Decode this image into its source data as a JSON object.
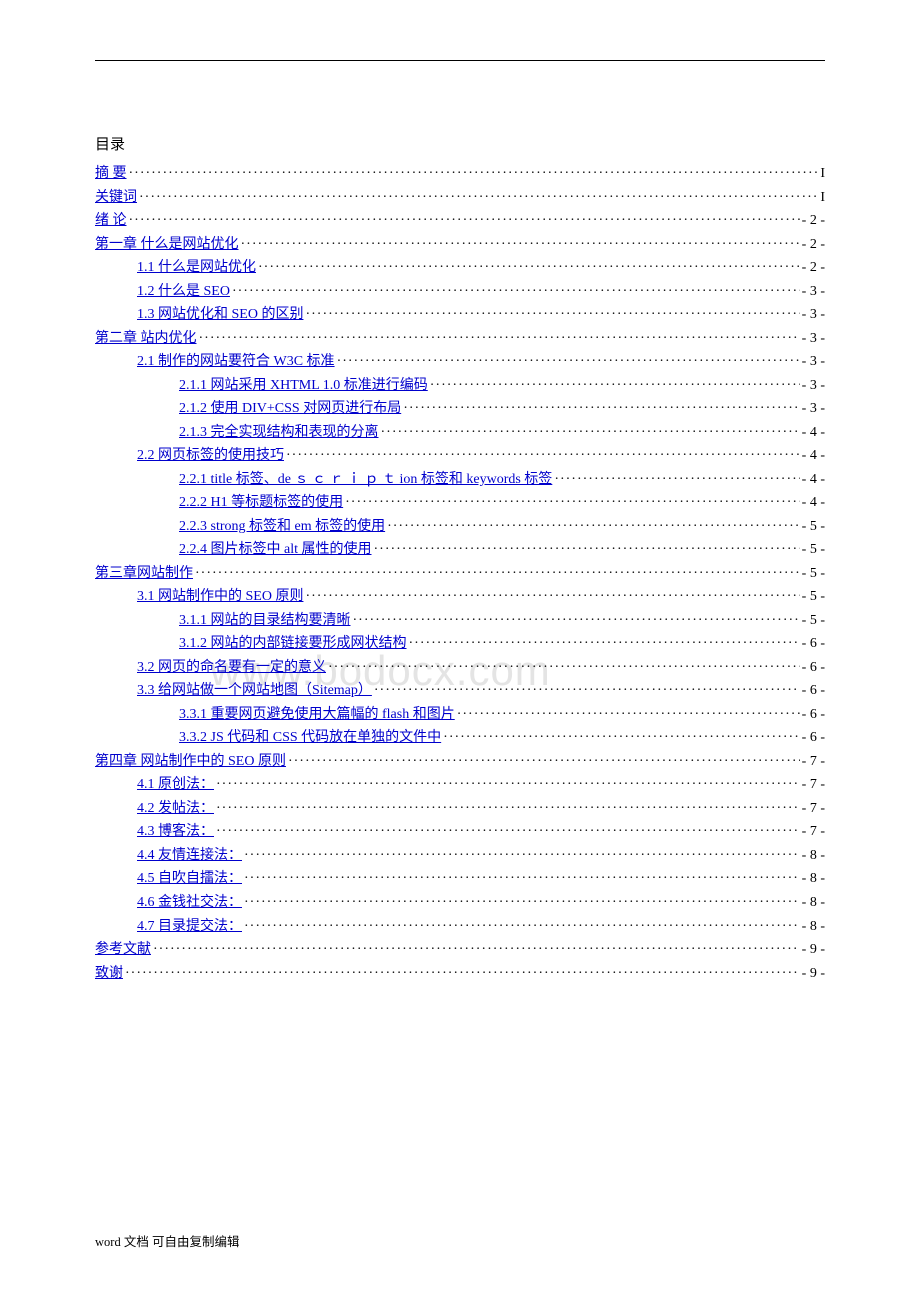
{
  "title": "目录",
  "watermark": "www.bodocx.com",
  "footer": "word 文档  可自由复制编辑",
  "link_color": "#0000cc",
  "text_color": "#000000",
  "leader_color": "#000000",
  "watermark_color": "#e4e4e4",
  "font_family": "SimSun",
  "entries": [
    {
      "label": "摘    要",
      "page": "I",
      "indent": 0
    },
    {
      "label": "关键词",
      "page": "I",
      "indent": 0
    },
    {
      "label": "绪 论",
      "page": "- 2 -",
      "indent": 0
    },
    {
      "label": "第一章  什么是网站优化",
      "page": "- 2 -",
      "indent": 0
    },
    {
      "label": "1.1 什么是网站优化",
      "page": "- 2 -",
      "indent": 1
    },
    {
      "label": "1.2 什么是 SEO",
      "page": "- 3 -",
      "indent": 1
    },
    {
      "label": "1.3    网站优化和 SEO 的区别",
      "page": "- 3 -",
      "indent": 1
    },
    {
      "label": "第二章  站内优化",
      "page": "- 3 -",
      "indent": 0
    },
    {
      "label": "2.1 制作的网站要符合 W3C 标准",
      "page": "- 3 -",
      "indent": 1
    },
    {
      "label": "2.1.1    网站采用  XHTML 1.0  标准进行编码",
      "page": "- 3 -",
      "indent": 2
    },
    {
      "label": "2.1.2    使用 DIV+CSS 对网页进行布局",
      "page": "- 3 -",
      "indent": 2
    },
    {
      "label": "2.1.3    完全实现结构和表现的分离",
      "page": "- 4 -",
      "indent": 2
    },
    {
      "label": "2.2  网页标签的使用技巧",
      "page": "- 4 -",
      "indent": 1
    },
    {
      "label": "2.2.1    title 标签、de ｓ ｃ ｒ ｉ ｐ ｔ ion 标签和 keywords 标签",
      "page": "- 4 -",
      "indent": 2
    },
    {
      "label": "2.2.2    H1 等标题标签的使用",
      "page": "- 4 -",
      "indent": 2
    },
    {
      "label": "2.2.3    strong 标签和 em 标签的使用",
      "page": "- 5 -",
      "indent": 2
    },
    {
      "label": "2.2.4    图片标签中 alt 属性的使用",
      "page": "- 5 -",
      "indent": 2
    },
    {
      "label": "第三章网站制作",
      "page": "- 5 -",
      "indent": 0
    },
    {
      "label": "3.1    网站制作中的 SEO 原则",
      "page": "- 5 -",
      "indent": 1
    },
    {
      "label": "3.1.1    网站的目录结构要清晰",
      "page": "- 5 -",
      "indent": 2
    },
    {
      "label": "3.1.2    网站的内部链接要形成网状结构",
      "page": "- 6 -",
      "indent": 2
    },
    {
      "label": "3.2    网页的命名要有一定的意义",
      "page": "- 6 -",
      "indent": 1
    },
    {
      "label": "3.3  给网站做一个网站地图（Sitemap）",
      "page": "- 6 -",
      "indent": 1
    },
    {
      "label": "3.3.1    重要网页避免使用大篇幅的  flash 和图片",
      "page": "- 6 -",
      "indent": 2
    },
    {
      "label": "3.3.2    JS 代码和 CSS 代码放在单独的文件中",
      "page": "- 6 -",
      "indent": 2
    },
    {
      "label": "第四章    网站制作中的 SEO 原则",
      "page": "- 7 -",
      "indent": 0
    },
    {
      "label": "4.1    原创法：",
      "page": "- 7 -",
      "indent": 1
    },
    {
      "label": "4.2    发帖法：",
      "page": "- 7 -",
      "indent": 1
    },
    {
      "label": "4.3    博客法：",
      "page": "- 7 -",
      "indent": 1
    },
    {
      "label": "4.4    友情连接法：",
      "page": "- 8 -",
      "indent": 1
    },
    {
      "label": "4.5    自吹自擂法：",
      "page": "- 8 -",
      "indent": 1
    },
    {
      "label": "4.6    金钱社交法：",
      "page": "- 8 -",
      "indent": 1
    },
    {
      "label": "4.7 目录提交法：",
      "page": "- 8 -",
      "indent": 1
    },
    {
      "label": "参考文献",
      "page": "- 9 -",
      "indent": 0
    },
    {
      "label": "致谢",
      "page": "- 9 -",
      "indent": 0
    }
  ]
}
